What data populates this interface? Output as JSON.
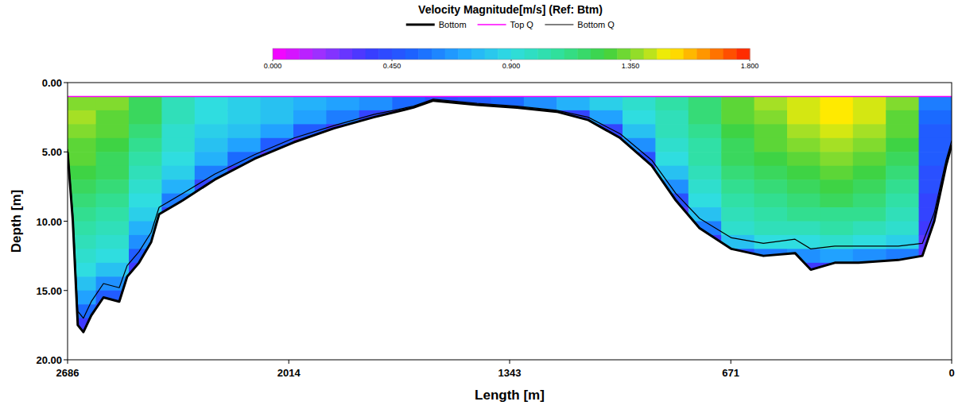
{
  "chart_data": {
    "type": "heatmap",
    "title": "Velocity Magnitude[m/s] (Ref: Btm)",
    "x_label": "Length [m]",
    "y_label": "Depth [m]",
    "xlim": [
      2686,
      0
    ],
    "ylim": [
      0,
      20
    ],
    "xticks": [
      2686,
      2014,
      1343,
      671,
      0
    ],
    "yticks": [
      {
        "value": 0,
        "label": "0.00"
      },
      {
        "value": 5,
        "label": "5.00"
      },
      {
        "value": 10,
        "label": "10.00"
      },
      {
        "value": 15,
        "label": "15.00"
      },
      {
        "value": 20,
        "label": "20.00"
      }
    ],
    "legend": "top",
    "colorbar": {
      "range": [
        0,
        1.8
      ],
      "ticks": [
        {
          "value": 0,
          "label": "0.000"
        },
        {
          "value": 0.45,
          "label": "0.450"
        },
        {
          "value": 0.9,
          "label": "0.900"
        },
        {
          "value": 1.35,
          "label": "1.350"
        },
        {
          "value": 1.8,
          "label": "1.800"
        }
      ]
    },
    "x_edges": [
      2686,
      2600,
      2500,
      2400,
      2300,
      2200,
      2100,
      2000,
      1900,
      1800,
      1700,
      1600,
      1500,
      1400,
      1300,
      1200,
      1100,
      1000,
      900,
      800,
      700,
      600,
      500,
      400,
      300,
      200,
      100,
      0
    ],
    "y_edges": [
      1,
      2,
      3,
      4,
      5,
      6,
      7,
      8,
      9,
      10,
      11,
      12,
      13,
      14,
      15,
      16,
      17,
      18
    ],
    "cells": [
      [
        1.35,
        1.4,
        1.35,
        1.3,
        1.3,
        1.25,
        1.2,
        1.15,
        1.1,
        1.05,
        1.0,
        0.95,
        0.9,
        0.8,
        0.7,
        0.55,
        0.35
      ],
      [
        1.35,
        1.3,
        1.3,
        1.25,
        1.2,
        1.2,
        1.15,
        1.1,
        1.05,
        1.0,
        0.95,
        0.9,
        0.8,
        0.65,
        0.5,
        0.3,
        null
      ],
      [
        1.2,
        1.2,
        1.15,
        1.1,
        1.05,
        1.0,
        0.95,
        0.9,
        0.85,
        0.75,
        0.65,
        0.5,
        0.35,
        null,
        null,
        null,
        null
      ],
      [
        1.0,
        1.0,
        0.95,
        0.95,
        0.9,
        0.85,
        0.75,
        0.6,
        0.4,
        null,
        null,
        null,
        null,
        null,
        null,
        null,
        null
      ],
      [
        0.9,
        0.9,
        0.85,
        0.8,
        0.75,
        0.6,
        0.4,
        null,
        null,
        null,
        null,
        null,
        null,
        null,
        null,
        null,
        null
      ],
      [
        0.85,
        0.85,
        0.8,
        0.7,
        0.55,
        0.35,
        null,
        null,
        null,
        null,
        null,
        null,
        null,
        null,
        null,
        null,
        null
      ],
      [
        0.8,
        0.8,
        0.7,
        0.5,
        0.3,
        null,
        null,
        null,
        null,
        null,
        null,
        null,
        null,
        null,
        null,
        null,
        null
      ],
      [
        0.75,
        0.7,
        0.5,
        0.3,
        null,
        null,
        null,
        null,
        null,
        null,
        null,
        null,
        null,
        null,
        null,
        null,
        null
      ],
      [
        0.7,
        0.6,
        0.35,
        null,
        null,
        null,
        null,
        null,
        null,
        null,
        null,
        null,
        null,
        null,
        null,
        null,
        null
      ],
      [
        0.65,
        0.4,
        null,
        null,
        null,
        null,
        null,
        null,
        null,
        null,
        null,
        null,
        null,
        null,
        null,
        null,
        null
      ],
      [
        0.55,
        0.3,
        null,
        null,
        null,
        null,
        null,
        null,
        null,
        null,
        null,
        null,
        null,
        null,
        null,
        null,
        null
      ],
      [
        0.45,
        null,
        null,
        null,
        null,
        null,
        null,
        null,
        null,
        null,
        null,
        null,
        null,
        null,
        null,
        null,
        null
      ],
      [
        0.5,
        null,
        null,
        null,
        null,
        null,
        null,
        null,
        null,
        null,
        null,
        null,
        null,
        null,
        null,
        null,
        null
      ],
      [
        0.55,
        null,
        null,
        null,
        null,
        null,
        null,
        null,
        null,
        null,
        null,
        null,
        null,
        null,
        null,
        null,
        null
      ],
      [
        0.65,
        0.35,
        null,
        null,
        null,
        null,
        null,
        null,
        null,
        null,
        null,
        null,
        null,
        null,
        null,
        null,
        null
      ],
      [
        0.75,
        0.4,
        null,
        null,
        null,
        null,
        null,
        null,
        null,
        null,
        null,
        null,
        null,
        null,
        null,
        null,
        null
      ],
      [
        0.85,
        0.7,
        0.4,
        null,
        null,
        null,
        null,
        null,
        null,
        null,
        null,
        null,
        null,
        null,
        null,
        null,
        null
      ],
      [
        0.95,
        0.9,
        0.8,
        0.65,
        0.45,
        0.3,
        null,
        null,
        null,
        null,
        null,
        null,
        null,
        null,
        null,
        null,
        null
      ],
      [
        1.05,
        1.0,
        1.0,
        0.95,
        0.9,
        0.8,
        0.65,
        0.45,
        0.3,
        null,
        null,
        null,
        null,
        null,
        null,
        null,
        null
      ],
      [
        1.15,
        1.15,
        1.1,
        1.05,
        1.05,
        1.0,
        0.95,
        0.9,
        0.8,
        0.6,
        0.35,
        null,
        null,
        null,
        null,
        null,
        null
      ],
      [
        1.3,
        1.3,
        1.25,
        1.2,
        1.2,
        1.15,
        1.1,
        1.05,
        1.0,
        0.95,
        0.8,
        0.45,
        null,
        null,
        null,
        null,
        null
      ],
      [
        1.4,
        1.35,
        1.3,
        1.3,
        1.25,
        1.2,
        1.15,
        1.1,
        1.05,
        1.0,
        0.9,
        0.6,
        null,
        null,
        null,
        null,
        null
      ],
      [
        1.45,
        1.45,
        1.4,
        1.35,
        1.3,
        1.25,
        1.2,
        1.15,
        1.1,
        1.0,
        0.9,
        0.65,
        0.35,
        null,
        null,
        null,
        null
      ],
      [
        1.5,
        1.5,
        1.45,
        1.4,
        1.35,
        1.3,
        1.25,
        1.2,
        1.1,
        1.05,
        0.95,
        0.7,
        0.35,
        null,
        null,
        null,
        null
      ],
      [
        1.45,
        1.45,
        1.4,
        1.35,
        1.3,
        1.25,
        1.2,
        1.15,
        1.1,
        1.0,
        0.9,
        0.65,
        0.35,
        null,
        null,
        null,
        null
      ],
      [
        1.35,
        1.3,
        1.3,
        1.25,
        1.2,
        1.15,
        1.1,
        1.05,
        1.0,
        0.95,
        0.85,
        0.6,
        null,
        null,
        null,
        null,
        null
      ],
      [
        0.6,
        0.55,
        0.5,
        0.5,
        0.5,
        0.45,
        0.45,
        0.4,
        0.4,
        0.35,
        0.3,
        0.3,
        null,
        null,
        null,
        null,
        null
      ]
    ],
    "series": [
      {
        "name": "Bottom",
        "color": "#000000",
        "type": "line",
        "line_style": "thick",
        "x": [
          2686,
          2670,
          2655,
          2638,
          2614,
          2577,
          2529,
          2505,
          2469,
          2432,
          2408,
          2336,
          2239,
          2118,
          1998,
          1877,
          1756,
          1635,
          1575,
          1442,
          1321,
          1200,
          1104,
          1007,
          911,
          838,
          766,
          669,
          572,
          476,
          428,
          355,
          283,
          162,
          89,
          53,
          17,
          0
        ],
        "values": [
          5,
          10,
          17.5,
          18,
          16.8,
          15.5,
          15.8,
          14,
          13,
          11.5,
          9.5,
          8.5,
          7,
          5.5,
          4.3,
          3.3,
          2.5,
          1.8,
          1.3,
          1.6,
          1.8,
          2.1,
          2.7,
          4.0,
          6.0,
          8.5,
          10.5,
          12,
          12.5,
          12.3,
          13.5,
          13,
          13,
          12.8,
          12.5,
          10,
          6,
          4.5
        ]
      },
      {
        "name": "Top Q",
        "color": "#ff00ff",
        "type": "line",
        "line_style": "solid",
        "x": [
          2686,
          0
        ],
        "values": [
          1,
          1
        ]
      },
      {
        "name": "Bottom Q",
        "color": "#000000",
        "type": "line",
        "line_style": "thin",
        "x": [
          2686,
          2670,
          2655,
          2638,
          2614,
          2577,
          2529,
          2505,
          2469,
          2432,
          2408,
          2336,
          2239,
          2118,
          1998,
          1877,
          1756,
          1635,
          1575,
          1442,
          1321,
          1200,
          1104,
          1007,
          911,
          838,
          766,
          669,
          572,
          476,
          428,
          355,
          283,
          162,
          89,
          53,
          17,
          0
        ],
        "values": [
          4.8,
          9.5,
          16.5,
          17,
          15.8,
          14.5,
          14.8,
          13.2,
          12.2,
          10.8,
          9,
          8,
          6.6,
          5.2,
          4.0,
          3.1,
          2.3,
          1.7,
          1.2,
          1.5,
          1.7,
          2.0,
          2.5,
          3.7,
          5.6,
          8.0,
          9.8,
          11.2,
          11.6,
          11.3,
          12.0,
          11.8,
          11.8,
          11.8,
          11.6,
          9.4,
          5.6,
          4.2
        ]
      }
    ]
  }
}
